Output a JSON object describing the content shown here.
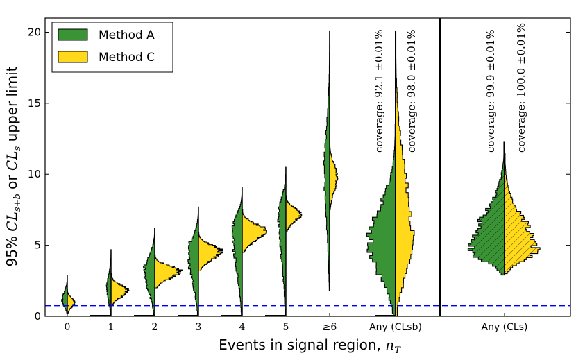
{
  "chart_data": {
    "type": "violin",
    "title": "",
    "xlabel": "Events in signal region, n_T",
    "ylabel": "95% CL_{s+b} or CL_s upper limit",
    "ylim": [
      0,
      21
    ],
    "yticks": [
      "0",
      "5",
      "10",
      "15",
      "20"
    ],
    "yticks_values": [
      0,
      5,
      10,
      15,
      20
    ],
    "reference_line": {
      "y": 0.75,
      "color": "#0000ee",
      "style": "dashed"
    },
    "legend": {
      "placement": "top-left",
      "entries": [
        {
          "label": "Method A",
          "color": "#3a9436"
        },
        {
          "label": "Method C",
          "color": "#ffd91a"
        }
      ]
    },
    "panels": [
      {
        "name": "left",
        "categories": [
          "0",
          "1",
          "2",
          "3",
          "4",
          "5",
          "≥6",
          "Any (CLsb)"
        ]
      },
      {
        "name": "right",
        "categories": [
          "Any (CLs)"
        ]
      }
    ],
    "distributions": [
      {
        "category": "0",
        "a": {
          "lo": 0.2,
          "hi": 2.9,
          "mode": 1.1,
          "width": 0.25
        },
        "c": {
          "lo": 0.2,
          "hi": 1.9,
          "mode": 1.0,
          "width": 0.35
        }
      },
      {
        "category": "1",
        "a": {
          "lo": 0.0,
          "hi": 4.7,
          "mode": 2.0,
          "width": 0.2
        },
        "c": {
          "lo": 0.8,
          "hi": 3.0,
          "mode": 1.8,
          "width": 0.8
        }
      },
      {
        "category": "2",
        "a": {
          "lo": 0.0,
          "hi": 6.2,
          "mode": 3.2,
          "width": 0.5
        },
        "c": {
          "lo": 2.0,
          "hi": 4.3,
          "mode": 3.2,
          "width": 1.2
        }
      },
      {
        "category": "3",
        "a": {
          "lo": 0.0,
          "hi": 7.7,
          "mode": 4.5,
          "width": 0.5
        },
        "c": {
          "lo": 3.2,
          "hi": 5.9,
          "mode": 4.6,
          "width": 1.05
        }
      },
      {
        "category": "4",
        "a": {
          "lo": 0.0,
          "hi": 9.1,
          "mode": 6.0,
          "width": 0.45
        },
        "c": {
          "lo": 4.5,
          "hi": 7.5,
          "mode": 6.0,
          "width": 1.1
        }
      },
      {
        "category": "5",
        "a": {
          "lo": 0.0,
          "hi": 10.5,
          "mode": 7.2,
          "width": 0.35
        },
        "c": {
          "lo": 6.0,
          "hi": 8.5,
          "mode": 7.2,
          "width": 0.7
        }
      },
      {
        "category": "≥6",
        "a": {
          "lo": 1.8,
          "hi": 20.1,
          "mode": 10.0,
          "width": 0.25
        },
        "c": {
          "lo": 7.5,
          "hi": 12.5,
          "mode": 9.8,
          "width": 0.35
        }
      },
      {
        "category": "Any (CLsb)",
        "a": {
          "lo": 0.0,
          "hi": 13.5,
          "mode": 5.0,
          "width": 1.25
        },
        "c": {
          "lo": 0.0,
          "hi": 20.1,
          "mode": 5.0,
          "width": 0.8
        }
      },
      {
        "category": "Any (CLs)",
        "a": {
          "lo": 2.9,
          "hi": 12.3,
          "mode": 4.6,
          "width": 1.65
        },
        "c": {
          "lo": 3.0,
          "hi": 11.5,
          "mode": 4.6,
          "width": 1.5
        }
      }
    ],
    "annotations": [
      {
        "panel": "left",
        "method": "A",
        "text": "coverage: 92.1 ±0.01%"
      },
      {
        "panel": "left",
        "method": "C",
        "text": "coverage: 98.0 ±0.01%"
      },
      {
        "panel": "right",
        "method": "A",
        "text": "coverage: 99.9 ±0.01%"
      },
      {
        "panel": "right",
        "method": "C",
        "text": "coverage: 100.0 ±0.01%"
      }
    ]
  }
}
